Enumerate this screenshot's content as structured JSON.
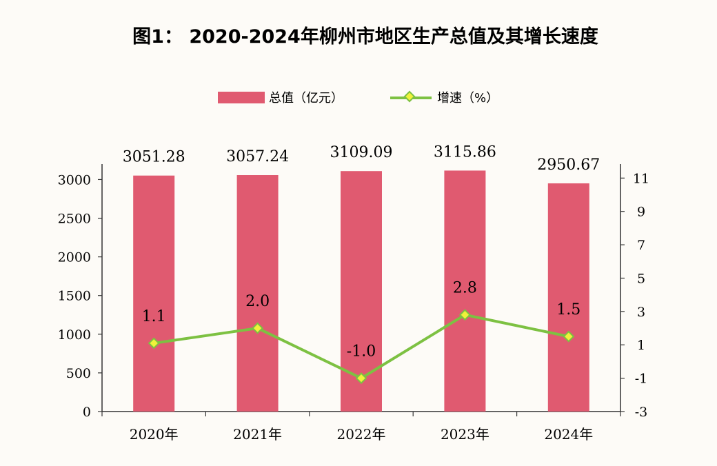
{
  "title": "图1：  2020-2024年柳州市地区生产总值及其增长速度",
  "colors": {
    "bar": "#e05a70",
    "line": "#7dc142",
    "marker_fill": "#f0f23a",
    "axis": "#333333"
  },
  "legend": {
    "bar_label": "总值（亿元）",
    "line_label": "增速（%）"
  },
  "chart_data": {
    "type": "bar",
    "categories": [
      "2020年",
      "2021年",
      "2022年",
      "2023年",
      "2024年"
    ],
    "series": [
      {
        "name": "总值（亿元）",
        "type": "bar",
        "axis": "left",
        "values": [
          3051.28,
          3057.24,
          3109.09,
          3115.86,
          2950.67
        ],
        "labels": [
          "3051.28",
          "3057.24",
          "3109.09",
          "3115.86",
          "2950.67"
        ]
      },
      {
        "name": "增速（%）",
        "type": "line",
        "axis": "right",
        "values": [
          1.1,
          2.0,
          -1.0,
          2.8,
          1.5
        ],
        "labels": [
          "1.1",
          "2.0",
          "-1.0",
          "2.8",
          "1.5"
        ]
      }
    ],
    "y_left": {
      "range": [
        0,
        3200
      ],
      "ticks": [
        0,
        500,
        1000,
        1500,
        2000,
        2500,
        3000
      ]
    },
    "y_right": {
      "range": [
        -3,
        11.84
      ],
      "ticks": [
        -3,
        -1,
        1,
        3,
        5,
        7,
        9,
        11
      ]
    },
    "grid": false,
    "legend_position": "top"
  }
}
